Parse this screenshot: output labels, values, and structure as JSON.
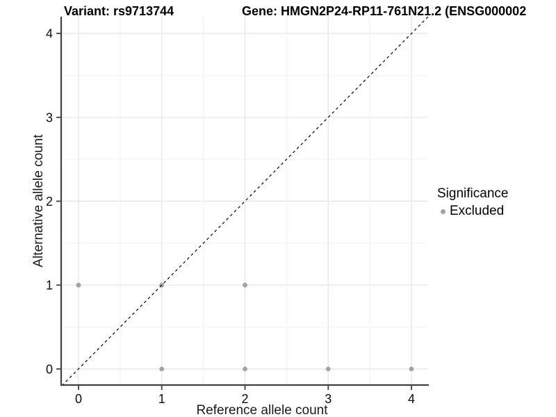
{
  "header": {
    "variant_title": "Variant: rs9713744",
    "gene_title": "Gene: HMGN2P24-RP11-761N21.2 (ENSG000002"
  },
  "chart_data": {
    "type": "scatter",
    "xlabel": "Reference allele count",
    "ylabel": "Alternative allele count",
    "xlim": [
      -0.2,
      4.2
    ],
    "ylim": [
      -0.2,
      4.2
    ],
    "x_ticks": [
      0,
      1,
      2,
      3,
      4
    ],
    "y_ticks": [
      0,
      1,
      2,
      3,
      4
    ],
    "grid": "major and minor gridlines on",
    "identity_line": {
      "type": "abline y=x",
      "style": "dashed"
    },
    "series": [
      {
        "name": "Excluded",
        "points": [
          [
            0,
            1
          ],
          [
            1,
            1
          ],
          [
            2,
            1
          ],
          [
            1,
            0
          ],
          [
            2,
            0
          ],
          [
            3,
            0
          ],
          [
            4,
            0
          ]
        ]
      }
    ],
    "legend": {
      "position": "right",
      "title": "Significance",
      "items": [
        {
          "label": "Excluded"
        }
      ]
    }
  },
  "colors": {
    "background": "#ffffff",
    "point": "#a3a3a3",
    "grid_major": "#e8e8e8",
    "grid_minor": "#f4f4f4",
    "axis_line": "#404040",
    "tick_text": "#0d0d0d",
    "identity_line": "#000000"
  }
}
